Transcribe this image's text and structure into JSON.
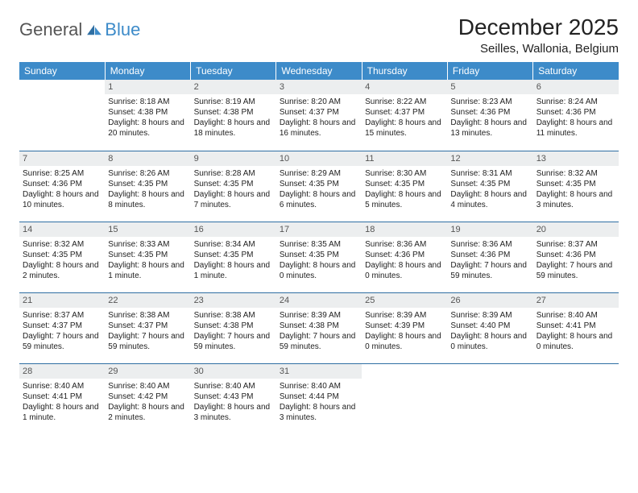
{
  "brand": {
    "general": "General",
    "blue": "Blue"
  },
  "header": {
    "title": "December 2025",
    "location": "Seilles, Wallonia, Belgium"
  },
  "colors": {
    "header_bg": "#3d8bc9",
    "row_border": "#2f6fa3",
    "daynum_bg": "#eceeef"
  },
  "weekday_labels": [
    "Sunday",
    "Monday",
    "Tuesday",
    "Wednesday",
    "Thursday",
    "Friday",
    "Saturday"
  ],
  "weeks": [
    [
      {
        "day": "",
        "sunrise": "",
        "sunset": "",
        "daylight": ""
      },
      {
        "day": "1",
        "sunrise": "Sunrise: 8:18 AM",
        "sunset": "Sunset: 4:38 PM",
        "daylight": "Daylight: 8 hours and 20 minutes."
      },
      {
        "day": "2",
        "sunrise": "Sunrise: 8:19 AM",
        "sunset": "Sunset: 4:38 PM",
        "daylight": "Daylight: 8 hours and 18 minutes."
      },
      {
        "day": "3",
        "sunrise": "Sunrise: 8:20 AM",
        "sunset": "Sunset: 4:37 PM",
        "daylight": "Daylight: 8 hours and 16 minutes."
      },
      {
        "day": "4",
        "sunrise": "Sunrise: 8:22 AM",
        "sunset": "Sunset: 4:37 PM",
        "daylight": "Daylight: 8 hours and 15 minutes."
      },
      {
        "day": "5",
        "sunrise": "Sunrise: 8:23 AM",
        "sunset": "Sunset: 4:36 PM",
        "daylight": "Daylight: 8 hours and 13 minutes."
      },
      {
        "day": "6",
        "sunrise": "Sunrise: 8:24 AM",
        "sunset": "Sunset: 4:36 PM",
        "daylight": "Daylight: 8 hours and 11 minutes."
      }
    ],
    [
      {
        "day": "7",
        "sunrise": "Sunrise: 8:25 AM",
        "sunset": "Sunset: 4:36 PM",
        "daylight": "Daylight: 8 hours and 10 minutes."
      },
      {
        "day": "8",
        "sunrise": "Sunrise: 8:26 AM",
        "sunset": "Sunset: 4:35 PM",
        "daylight": "Daylight: 8 hours and 8 minutes."
      },
      {
        "day": "9",
        "sunrise": "Sunrise: 8:28 AM",
        "sunset": "Sunset: 4:35 PM",
        "daylight": "Daylight: 8 hours and 7 minutes."
      },
      {
        "day": "10",
        "sunrise": "Sunrise: 8:29 AM",
        "sunset": "Sunset: 4:35 PM",
        "daylight": "Daylight: 8 hours and 6 minutes."
      },
      {
        "day": "11",
        "sunrise": "Sunrise: 8:30 AM",
        "sunset": "Sunset: 4:35 PM",
        "daylight": "Daylight: 8 hours and 5 minutes."
      },
      {
        "day": "12",
        "sunrise": "Sunrise: 8:31 AM",
        "sunset": "Sunset: 4:35 PM",
        "daylight": "Daylight: 8 hours and 4 minutes."
      },
      {
        "day": "13",
        "sunrise": "Sunrise: 8:32 AM",
        "sunset": "Sunset: 4:35 PM",
        "daylight": "Daylight: 8 hours and 3 minutes."
      }
    ],
    [
      {
        "day": "14",
        "sunrise": "Sunrise: 8:32 AM",
        "sunset": "Sunset: 4:35 PM",
        "daylight": "Daylight: 8 hours and 2 minutes."
      },
      {
        "day": "15",
        "sunrise": "Sunrise: 8:33 AM",
        "sunset": "Sunset: 4:35 PM",
        "daylight": "Daylight: 8 hours and 1 minute."
      },
      {
        "day": "16",
        "sunrise": "Sunrise: 8:34 AM",
        "sunset": "Sunset: 4:35 PM",
        "daylight": "Daylight: 8 hours and 1 minute."
      },
      {
        "day": "17",
        "sunrise": "Sunrise: 8:35 AM",
        "sunset": "Sunset: 4:35 PM",
        "daylight": "Daylight: 8 hours and 0 minutes."
      },
      {
        "day": "18",
        "sunrise": "Sunrise: 8:36 AM",
        "sunset": "Sunset: 4:36 PM",
        "daylight": "Daylight: 8 hours and 0 minutes."
      },
      {
        "day": "19",
        "sunrise": "Sunrise: 8:36 AM",
        "sunset": "Sunset: 4:36 PM",
        "daylight": "Daylight: 7 hours and 59 minutes."
      },
      {
        "day": "20",
        "sunrise": "Sunrise: 8:37 AM",
        "sunset": "Sunset: 4:36 PM",
        "daylight": "Daylight: 7 hours and 59 minutes."
      }
    ],
    [
      {
        "day": "21",
        "sunrise": "Sunrise: 8:37 AM",
        "sunset": "Sunset: 4:37 PM",
        "daylight": "Daylight: 7 hours and 59 minutes."
      },
      {
        "day": "22",
        "sunrise": "Sunrise: 8:38 AM",
        "sunset": "Sunset: 4:37 PM",
        "daylight": "Daylight: 7 hours and 59 minutes."
      },
      {
        "day": "23",
        "sunrise": "Sunrise: 8:38 AM",
        "sunset": "Sunset: 4:38 PM",
        "daylight": "Daylight: 7 hours and 59 minutes."
      },
      {
        "day": "24",
        "sunrise": "Sunrise: 8:39 AM",
        "sunset": "Sunset: 4:38 PM",
        "daylight": "Daylight: 7 hours and 59 minutes."
      },
      {
        "day": "25",
        "sunrise": "Sunrise: 8:39 AM",
        "sunset": "Sunset: 4:39 PM",
        "daylight": "Daylight: 8 hours and 0 minutes."
      },
      {
        "day": "26",
        "sunrise": "Sunrise: 8:39 AM",
        "sunset": "Sunset: 4:40 PM",
        "daylight": "Daylight: 8 hours and 0 minutes."
      },
      {
        "day": "27",
        "sunrise": "Sunrise: 8:40 AM",
        "sunset": "Sunset: 4:41 PM",
        "daylight": "Daylight: 8 hours and 0 minutes."
      }
    ],
    [
      {
        "day": "28",
        "sunrise": "Sunrise: 8:40 AM",
        "sunset": "Sunset: 4:41 PM",
        "daylight": "Daylight: 8 hours and 1 minute."
      },
      {
        "day": "29",
        "sunrise": "Sunrise: 8:40 AM",
        "sunset": "Sunset: 4:42 PM",
        "daylight": "Daylight: 8 hours and 2 minutes."
      },
      {
        "day": "30",
        "sunrise": "Sunrise: 8:40 AM",
        "sunset": "Sunset: 4:43 PM",
        "daylight": "Daylight: 8 hours and 3 minutes."
      },
      {
        "day": "31",
        "sunrise": "Sunrise: 8:40 AM",
        "sunset": "Sunset: 4:44 PM",
        "daylight": "Daylight: 8 hours and 3 minutes."
      },
      {
        "day": "",
        "sunrise": "",
        "sunset": "",
        "daylight": ""
      },
      {
        "day": "",
        "sunrise": "",
        "sunset": "",
        "daylight": ""
      },
      {
        "day": "",
        "sunrise": "",
        "sunset": "",
        "daylight": ""
      }
    ]
  ]
}
